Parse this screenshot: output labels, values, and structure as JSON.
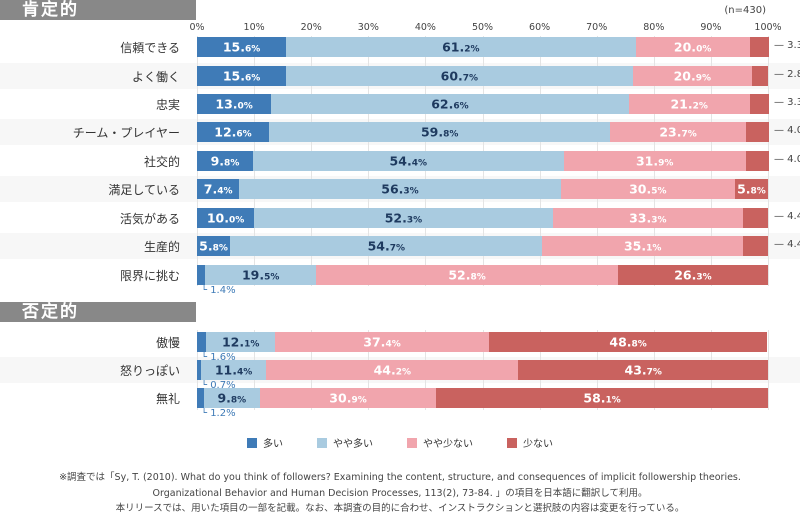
{
  "chart_data": {
    "type": "bar",
    "orientation": "horizontal-stacked-100",
    "n_label": "(n=430)",
    "xlim": [
      0,
      100
    ],
    "ticks": [
      "0%",
      "10%",
      "20%",
      "30%",
      "40%",
      "50%",
      "60%",
      "70%",
      "80%",
      "90%",
      "100%"
    ],
    "legend": [
      "多い",
      "やや多い",
      "やや少ない",
      "少ない"
    ],
    "legend_position": "bottom",
    "colors": [
      "#3f7bb7",
      "#a9cbe0",
      "#f1a5ad",
      "#c9625f"
    ],
    "groups": [
      {
        "title": "肯定的",
        "categories": [
          {
            "label": "信頼できる",
            "values": [
              15.6,
              61.2,
              20.0,
              3.3
            ]
          },
          {
            "label": "よく働く",
            "values": [
              15.6,
              60.7,
              20.9,
              2.8
            ]
          },
          {
            "label": "忠実",
            "values": [
              13.0,
              62.6,
              21.2,
              3.3
            ]
          },
          {
            "label": "チーム・プレイヤー",
            "values": [
              12.6,
              59.8,
              23.7,
              4.0
            ]
          },
          {
            "label": "社交的",
            "values": [
              9.8,
              54.4,
              31.9,
              4.0
            ]
          },
          {
            "label": "満足している",
            "values": [
              7.4,
              56.3,
              30.5,
              5.8
            ]
          },
          {
            "label": "活気がある",
            "values": [
              10.0,
              52.3,
              33.3,
              4.4
            ]
          },
          {
            "label": "生産的",
            "values": [
              5.8,
              54.7,
              35.1,
              4.4
            ]
          },
          {
            "label": "限界に挑む",
            "values": [
              1.4,
              19.5,
              52.8,
              26.3
            ]
          }
        ]
      },
      {
        "title": "否定的",
        "categories": [
          {
            "label": "傲慢",
            "values": [
              1.6,
              12.1,
              37.4,
              48.8
            ]
          },
          {
            "label": "怒りっぽい",
            "values": [
              0.7,
              11.4,
              44.2,
              43.7
            ]
          },
          {
            "label": "無礼",
            "values": [
              1.2,
              9.8,
              30.9,
              58.1
            ]
          }
        ]
      }
    ]
  },
  "footnote": [
    "※調査では「Sy, T. (2010). What do you think of followers? Examining the content, structure, and consequences of implicit followership theories.",
    "Organizational Behavior and Human Decision Processes,  113(2), 73-84. 」の項目を日本語に翻訳して利用。",
    "本リリースでは、用いた項目の一部を記載。なお、本調査の目的に合わせ、インストラクションと選択肢の内容は変更を行っている。"
  ]
}
